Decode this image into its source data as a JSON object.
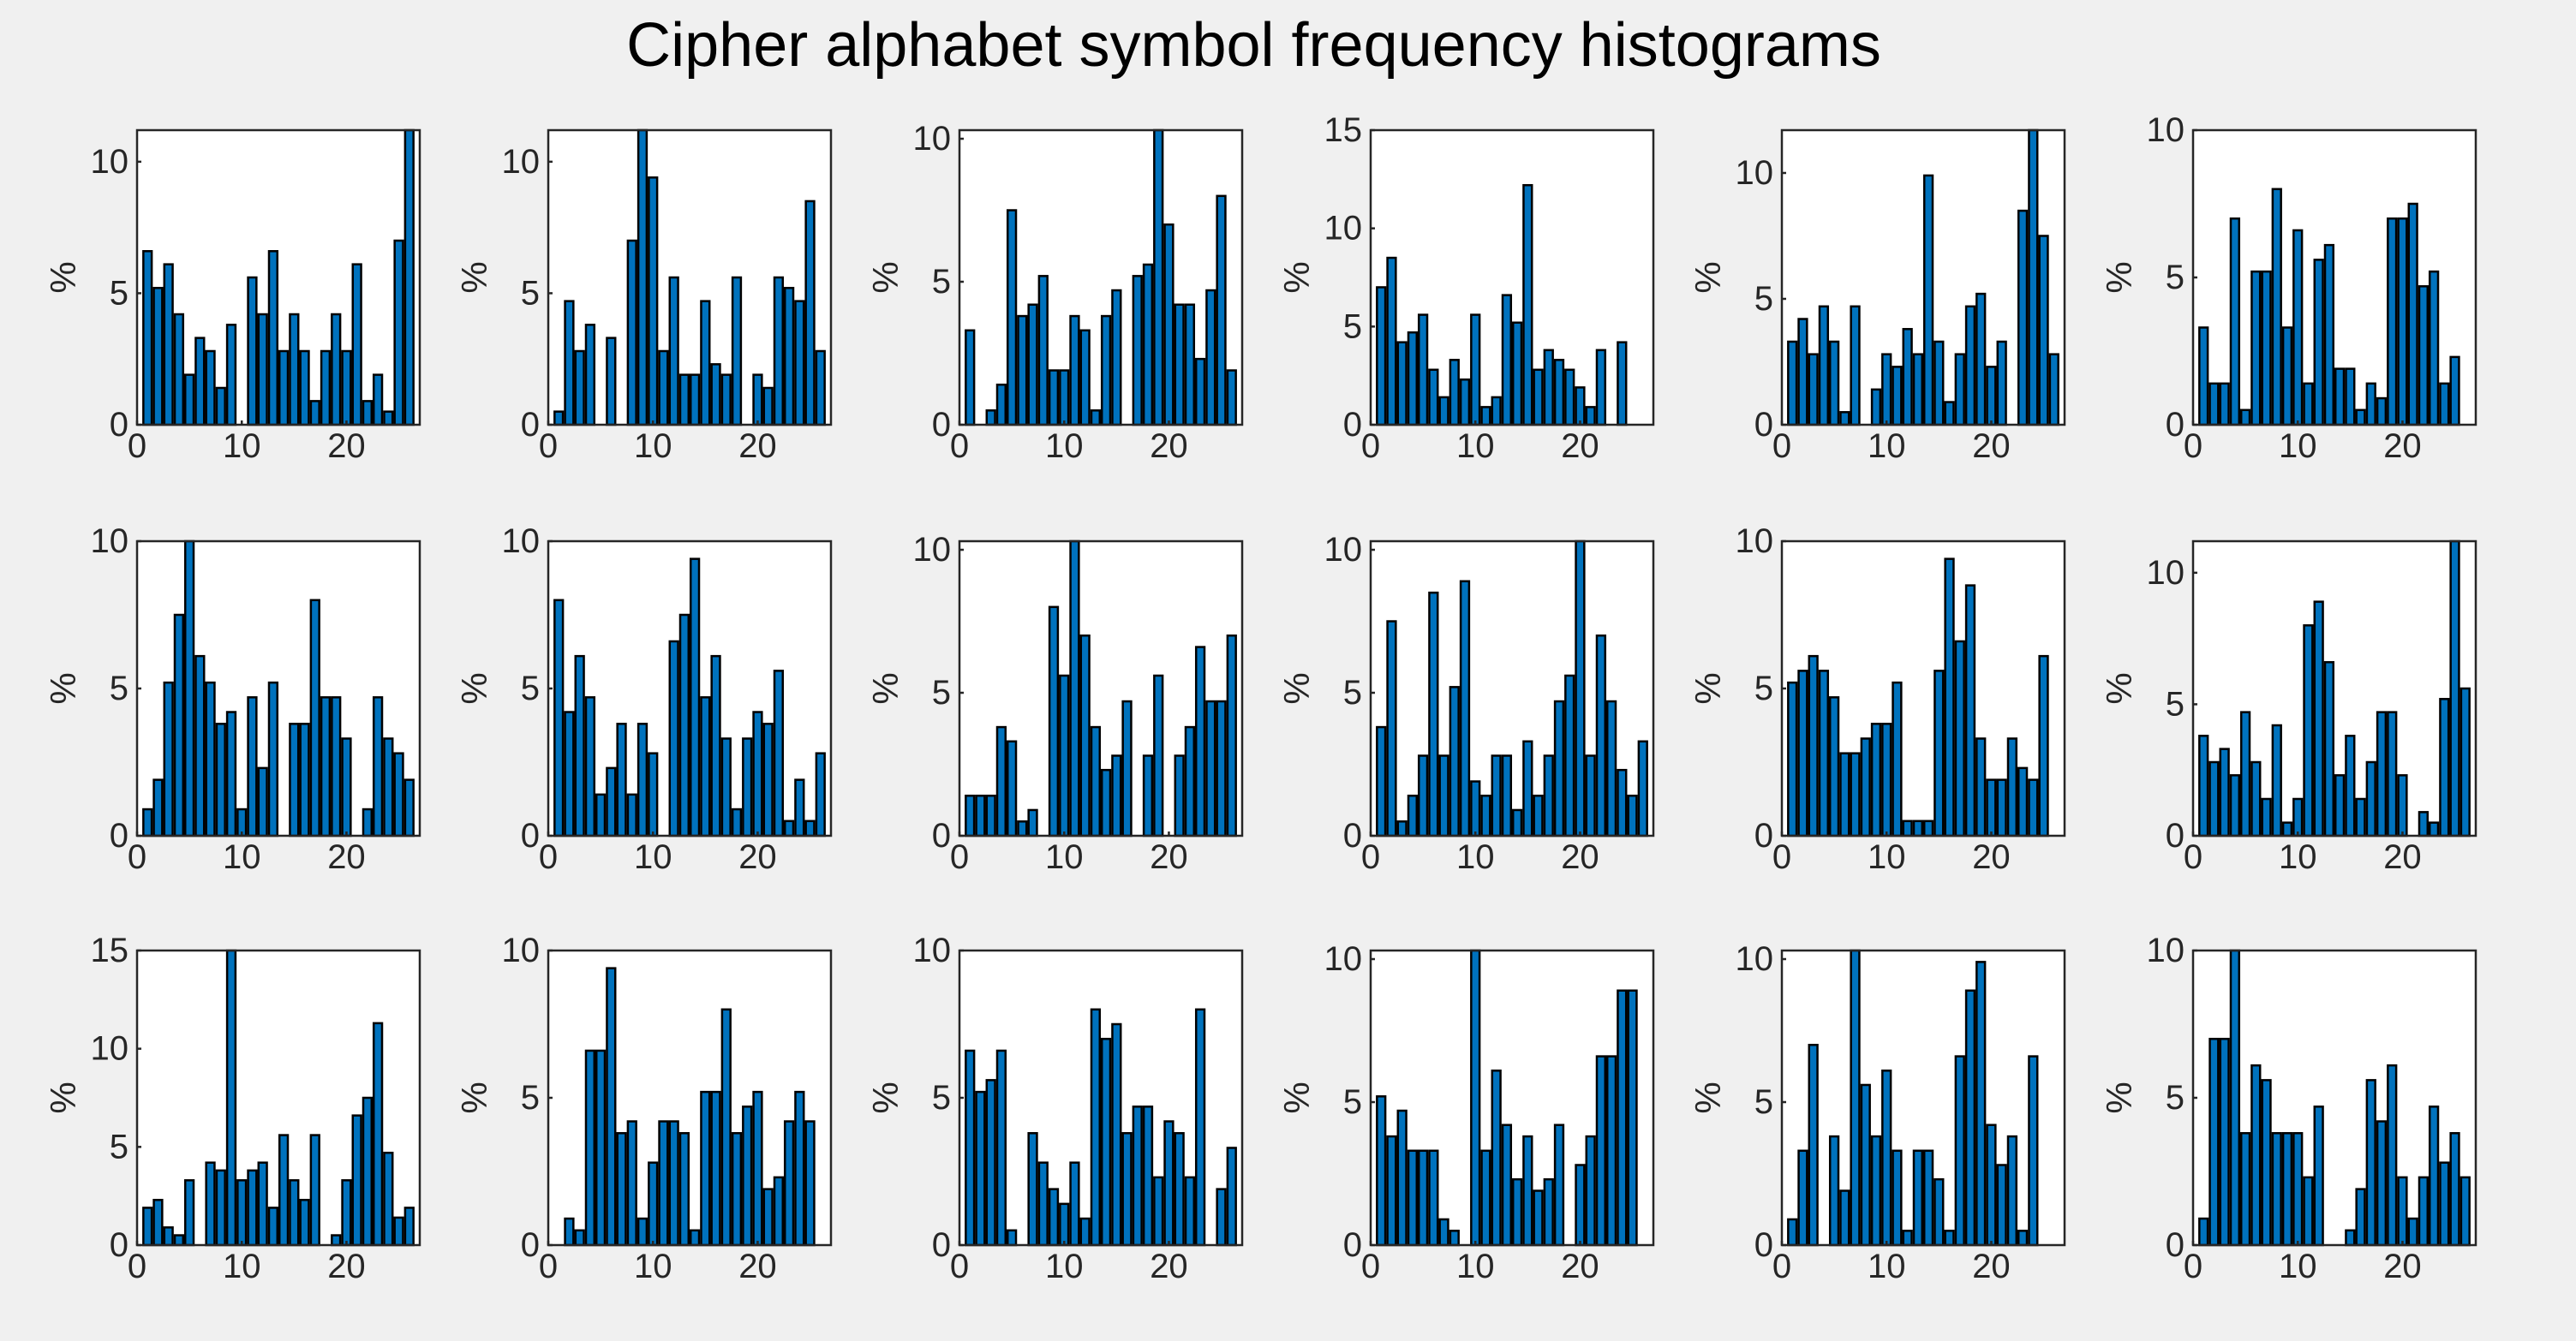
{
  "figure": {
    "title": "Cipher alphabet symbol frequency histograms"
  },
  "chart_data": [
    {
      "type": "bar",
      "xlabel": "",
      "ylabel": "%",
      "ylim": [
        0,
        11.2
      ],
      "yticks": [
        0,
        5,
        10
      ],
      "xticks": [
        0,
        10,
        20
      ],
      "xlim": [
        0,
        27
      ],
      "x": [
        1,
        2,
        3,
        4,
        5,
        6,
        7,
        8,
        9,
        10,
        11,
        12,
        13,
        14,
        15,
        16,
        17,
        18,
        19,
        20,
        21,
        22,
        23,
        24,
        25,
        26
      ],
      "values": [
        6.6,
        5.2,
        6.1,
        4.2,
        1.9,
        3.3,
        2.8,
        1.4,
        3.8,
        0,
        5.6,
        4.2,
        6.6,
        2.8,
        4.2,
        2.8,
        0.9,
        2.8,
        4.2,
        2.8,
        6.1,
        0.9,
        1.9,
        0.5,
        7.0,
        11.2
      ]
    },
    {
      "type": "bar",
      "xlabel": "",
      "ylabel": "%",
      "ylim": [
        0,
        11.2
      ],
      "yticks": [
        0,
        5,
        10
      ],
      "xticks": [
        0,
        10,
        20
      ],
      "xlim": [
        0,
        27
      ],
      "x": [
        1,
        2,
        3,
        4,
        5,
        6,
        7,
        8,
        9,
        10,
        11,
        12,
        13,
        14,
        15,
        16,
        17,
        18,
        19,
        20,
        21,
        22,
        23,
        24,
        25,
        26
      ],
      "values": [
        0.5,
        4.7,
        2.8,
        3.8,
        0,
        3.3,
        0,
        7.0,
        11.2,
        9.4,
        2.8,
        5.6,
        1.9,
        1.9,
        4.7,
        2.3,
        1.9,
        5.6,
        0,
        1.9,
        1.4,
        5.6,
        5.2,
        4.7,
        8.5,
        2.8
      ]
    },
    {
      "type": "bar",
      "xlabel": "",
      "ylabel": "%",
      "ylim": [
        0,
        10.3
      ],
      "yticks": [
        0,
        5,
        10
      ],
      "xticks": [
        0,
        10,
        20
      ],
      "xlim": [
        0,
        27
      ],
      "x": [
        1,
        2,
        3,
        4,
        5,
        6,
        7,
        8,
        9,
        10,
        11,
        12,
        13,
        14,
        15,
        16,
        17,
        18,
        19,
        20,
        21,
        22,
        23,
        24,
        25,
        26
      ],
      "values": [
        3.3,
        0,
        0.5,
        1.4,
        7.5,
        3.8,
        4.2,
        5.2,
        1.9,
        1.9,
        3.8,
        3.3,
        0.5,
        3.8,
        4.7,
        0,
        5.2,
        5.6,
        10.3,
        7.0,
        4.2,
        4.2,
        2.3,
        4.7,
        8.0,
        1.9
      ]
    },
    {
      "type": "bar",
      "xlabel": "",
      "ylabel": "%",
      "ylim": [
        0,
        15
      ],
      "yticks": [
        0,
        5,
        10,
        15
      ],
      "xticks": [
        0,
        10,
        20
      ],
      "xlim": [
        0,
        27
      ],
      "x": [
        1,
        2,
        3,
        4,
        5,
        6,
        7,
        8,
        9,
        10,
        11,
        12,
        13,
        14,
        15,
        16,
        17,
        18,
        19,
        20,
        21,
        22,
        23,
        24,
        25,
        26
      ],
      "values": [
        7.0,
        8.5,
        4.2,
        4.7,
        5.6,
        2.8,
        1.4,
        3.3,
        2.3,
        5.6,
        0.9,
        1.4,
        6.6,
        5.2,
        12.2,
        2.8,
        3.8,
        3.3,
        2.8,
        1.9,
        0.9,
        3.8,
        0,
        4.2,
        0,
        0
      ]
    },
    {
      "type": "bar",
      "xlabel": "",
      "ylabel": "%",
      "ylim": [
        0,
        11.7
      ],
      "yticks": [
        0,
        5,
        10
      ],
      "xticks": [
        0,
        10,
        20
      ],
      "xlim": [
        0,
        27
      ],
      "x": [
        1,
        2,
        3,
        4,
        5,
        6,
        7,
        8,
        9,
        10,
        11,
        12,
        13,
        14,
        15,
        16,
        17,
        18,
        19,
        20,
        21,
        22,
        23,
        24,
        25,
        26
      ],
      "values": [
        3.3,
        4.2,
        2.8,
        4.7,
        3.3,
        0.5,
        4.7,
        0,
        1.4,
        2.8,
        2.3,
        3.8,
        2.8,
        9.9,
        3.3,
        0.9,
        2.8,
        4.7,
        5.2,
        2.3,
        3.3,
        0,
        8.5,
        11.7,
        7.5,
        2.8
      ]
    },
    {
      "type": "bar",
      "xlabel": "",
      "ylabel": "%",
      "ylim": [
        0,
        10
      ],
      "yticks": [
        0,
        5,
        10
      ],
      "xticks": [
        0,
        10,
        20
      ],
      "xlim": [
        0,
        27
      ],
      "x": [
        1,
        2,
        3,
        4,
        5,
        6,
        7,
        8,
        9,
        10,
        11,
        12,
        13,
        14,
        15,
        16,
        17,
        18,
        19,
        20,
        21,
        22,
        23,
        24,
        25,
        26
      ],
      "values": [
        3.3,
        1.4,
        1.4,
        7.0,
        0.5,
        5.2,
        5.2,
        8.0,
        3.3,
        6.6,
        1.4,
        5.6,
        6.1,
        1.9,
        1.9,
        0.5,
        1.4,
        0.9,
        7.0,
        7.0,
        7.5,
        4.7,
        5.2,
        1.4,
        2.3,
        0
      ]
    },
    {
      "type": "bar",
      "xlabel": "",
      "ylabel": "%",
      "ylim": [
        0,
        10
      ],
      "yticks": [
        0,
        5,
        10
      ],
      "xticks": [
        0,
        10,
        20
      ],
      "xlim": [
        0,
        27
      ],
      "x": [
        1,
        2,
        3,
        4,
        5,
        6,
        7,
        8,
        9,
        10,
        11,
        12,
        13,
        14,
        15,
        16,
        17,
        18,
        19,
        20,
        21,
        22,
        23,
        24,
        25,
        26
      ],
      "values": [
        0.9,
        1.9,
        5.2,
        7.5,
        10,
        6.1,
        5.2,
        3.8,
        4.2,
        0.9,
        4.7,
        2.3,
        5.2,
        0,
        3.8,
        3.8,
        8.0,
        4.7,
        4.7,
        3.3,
        0,
        0.9,
        4.7,
        3.3,
        2.8,
        1.9
      ]
    },
    {
      "type": "bar",
      "xlabel": "",
      "ylabel": "%",
      "ylim": [
        0,
        10
      ],
      "yticks": [
        0,
        5,
        10
      ],
      "xticks": [
        0,
        10,
        20
      ],
      "xlim": [
        0,
        27
      ],
      "x": [
        1,
        2,
        3,
        4,
        5,
        6,
        7,
        8,
        9,
        10,
        11,
        12,
        13,
        14,
        15,
        16,
        17,
        18,
        19,
        20,
        21,
        22,
        23,
        24,
        25,
        26
      ],
      "values": [
        8.0,
        4.2,
        6.1,
        4.7,
        1.4,
        2.3,
        3.8,
        1.4,
        3.8,
        2.8,
        0,
        6.6,
        7.5,
        9.4,
        4.7,
        6.1,
        3.3,
        0.9,
        3.3,
        4.2,
        3.8,
        5.6,
        0.5,
        1.9,
        0.5,
        2.8
      ]
    },
    {
      "type": "bar",
      "xlabel": "",
      "ylabel": "%",
      "ylim": [
        0,
        10.3
      ],
      "yticks": [
        0,
        5,
        10
      ],
      "xticks": [
        0,
        10,
        20
      ],
      "xlim": [
        0,
        27
      ],
      "x": [
        1,
        2,
        3,
        4,
        5,
        6,
        7,
        8,
        9,
        10,
        11,
        12,
        13,
        14,
        15,
        16,
        17,
        18,
        19,
        20,
        21,
        22,
        23,
        24,
        25,
        26
      ],
      "values": [
        1.4,
        1.4,
        1.4,
        3.8,
        3.3,
        0.5,
        0.9,
        0,
        8.0,
        5.6,
        10.3,
        7.0,
        3.8,
        2.3,
        2.8,
        4.7,
        0,
        2.8,
        5.6,
        0,
        2.8,
        3.8,
        6.6,
        4.7,
        4.7,
        7.0
      ]
    },
    {
      "type": "bar",
      "xlabel": "",
      "ylabel": "%",
      "ylim": [
        0,
        10.3
      ],
      "yticks": [
        0,
        5,
        10
      ],
      "xticks": [
        0,
        10,
        20
      ],
      "xlim": [
        0,
        27
      ],
      "x": [
        1,
        2,
        3,
        4,
        5,
        6,
        7,
        8,
        9,
        10,
        11,
        12,
        13,
        14,
        15,
        16,
        17,
        18,
        19,
        20,
        21,
        22,
        23,
        24,
        25,
        26
      ],
      "values": [
        3.8,
        7.5,
        0.5,
        1.4,
        2.8,
        8.5,
        2.8,
        5.2,
        8.9,
        1.9,
        1.4,
        2.8,
        2.8,
        0.9,
        3.3,
        1.4,
        2.8,
        4.7,
        5.6,
        10.3,
        2.8,
        7.0,
        4.7,
        2.3,
        1.4,
        3.3
      ]
    },
    {
      "type": "bar",
      "xlabel": "",
      "ylabel": "%",
      "ylim": [
        0,
        10
      ],
      "yticks": [
        0,
        5,
        10
      ],
      "xticks": [
        0,
        10,
        20
      ],
      "xlim": [
        0,
        27
      ],
      "x": [
        1,
        2,
        3,
        4,
        5,
        6,
        7,
        8,
        9,
        10,
        11,
        12,
        13,
        14,
        15,
        16,
        17,
        18,
        19,
        20,
        21,
        22,
        23,
        24,
        25,
        26
      ],
      "values": [
        5.2,
        5.6,
        6.1,
        5.6,
        4.7,
        2.8,
        2.8,
        3.3,
        3.8,
        3.8,
        5.2,
        0.5,
        0.5,
        0.5,
        5.6,
        9.4,
        6.6,
        8.5,
        3.3,
        1.9,
        1.9,
        3.3,
        2.3,
        1.9,
        6.1,
        0
      ]
    },
    {
      "type": "bar",
      "xlabel": "",
      "ylabel": "%",
      "ylim": [
        0,
        11.2
      ],
      "yticks": [
        0,
        5,
        10
      ],
      "xticks": [
        0,
        10,
        20
      ],
      "xlim": [
        0,
        27
      ],
      "x": [
        1,
        2,
        3,
        4,
        5,
        6,
        7,
        8,
        9,
        10,
        11,
        12,
        13,
        14,
        15,
        16,
        17,
        18,
        19,
        20,
        21,
        22,
        23,
        24,
        25,
        26
      ],
      "values": [
        3.8,
        2.8,
        3.3,
        2.3,
        4.7,
        2.8,
        1.4,
        4.2,
        0.5,
        1.4,
        8.0,
        8.9,
        6.6,
        2.3,
        3.8,
        1.4,
        2.8,
        4.7,
        4.7,
        2.3,
        0,
        0.9,
        0.5,
        5.2,
        11.2,
        5.6
      ]
    },
    {
      "type": "bar",
      "xlabel": "",
      "ylabel": "%",
      "ylim": [
        0,
        15
      ],
      "yticks": [
        0,
        5,
        10,
        15
      ],
      "xticks": [
        0,
        10,
        20
      ],
      "xlim": [
        0,
        27
      ],
      "x": [
        1,
        2,
        3,
        4,
        5,
        6,
        7,
        8,
        9,
        10,
        11,
        12,
        13,
        14,
        15,
        16,
        17,
        18,
        19,
        20,
        21,
        22,
        23,
        24,
        25,
        26
      ],
      "values": [
        1.9,
        2.3,
        0.9,
        0.5,
        3.3,
        0,
        4.2,
        3.8,
        15.0,
        3.3,
        3.8,
        4.2,
        1.9,
        5.6,
        3.3,
        2.3,
        5.6,
        0,
        0.5,
        3.3,
        6.6,
        7.5,
        11.3,
        4.7,
        1.4,
        1.9
      ]
    },
    {
      "type": "bar",
      "xlabel": "",
      "ylabel": "%",
      "ylim": [
        0,
        10
      ],
      "yticks": [
        0,
        5,
        10
      ],
      "xticks": [
        0,
        10,
        20
      ],
      "xlim": [
        0,
        27
      ],
      "x": [
        1,
        2,
        3,
        4,
        5,
        6,
        7,
        8,
        9,
        10,
        11,
        12,
        13,
        14,
        15,
        16,
        17,
        18,
        19,
        20,
        21,
        22,
        23,
        24,
        25,
        26
      ],
      "values": [
        0,
        0.9,
        0.5,
        6.6,
        6.6,
        9.4,
        3.8,
        4.2,
        0.9,
        2.8,
        4.2,
        4.2,
        3.8,
        0.5,
        5.2,
        5.2,
        8.0,
        3.8,
        4.7,
        5.2,
        1.9,
        2.3,
        4.2,
        5.2,
        4.2,
        0
      ]
    },
    {
      "type": "bar",
      "xlabel": "",
      "ylabel": "%",
      "ylim": [
        0,
        10
      ],
      "yticks": [
        0,
        5,
        10
      ],
      "xticks": [
        0,
        10,
        20
      ],
      "xlim": [
        0,
        27
      ],
      "x": [
        1,
        2,
        3,
        4,
        5,
        6,
        7,
        8,
        9,
        10,
        11,
        12,
        13,
        14,
        15,
        16,
        17,
        18,
        19,
        20,
        21,
        22,
        23,
        24,
        25,
        26
      ],
      "values": [
        6.6,
        5.2,
        5.6,
        6.6,
        0.5,
        0,
        3.8,
        2.8,
        1.9,
        1.4,
        2.8,
        0.9,
        8.0,
        7.0,
        7.5,
        3.8,
        4.7,
        4.7,
        2.3,
        4.2,
        3.8,
        2.3,
        8.0,
        0,
        1.9,
        3.3
      ]
    },
    {
      "type": "bar",
      "xlabel": "",
      "ylabel": "%",
      "ylim": [
        0,
        10.3
      ],
      "yticks": [
        0,
        5,
        10
      ],
      "xticks": [
        0,
        10,
        20
      ],
      "xlim": [
        0,
        27
      ],
      "x": [
        1,
        2,
        3,
        4,
        5,
        6,
        7,
        8,
        9,
        10,
        11,
        12,
        13,
        14,
        15,
        16,
        17,
        18,
        19,
        20,
        21,
        22,
        23,
        24,
        25,
        26
      ],
      "values": [
        5.2,
        3.8,
        4.7,
        3.3,
        3.3,
        3.3,
        0.9,
        0.5,
        0,
        10.3,
        3.3,
        6.1,
        4.2,
        2.3,
        3.8,
        1.9,
        2.3,
        4.2,
        0,
        2.8,
        3.8,
        6.6,
        6.6,
        8.9,
        8.9,
        0
      ]
    },
    {
      "type": "bar",
      "xlabel": "",
      "ylabel": "%",
      "ylim": [
        0,
        10.3
      ],
      "yticks": [
        0,
        5,
        10
      ],
      "xticks": [
        0,
        10,
        20
      ],
      "xlim": [
        0,
        27
      ],
      "x": [
        1,
        2,
        3,
        4,
        5,
        6,
        7,
        8,
        9,
        10,
        11,
        12,
        13,
        14,
        15,
        16,
        17,
        18,
        19,
        20,
        21,
        22,
        23,
        24,
        25,
        26
      ],
      "values": [
        0.9,
        3.3,
        7.0,
        0,
        3.8,
        1.9,
        10.3,
        5.6,
        3.8,
        6.1,
        3.3,
        0.5,
        3.3,
        3.3,
        2.3,
        0.5,
        6.6,
        8.9,
        9.9,
        4.2,
        2.8,
        3.8,
        0.5,
        6.6,
        0,
        0
      ]
    },
    {
      "type": "bar",
      "xlabel": "",
      "ylabel": "%",
      "ylim": [
        0,
        10
      ],
      "yticks": [
        0,
        5,
        10
      ],
      "xticks": [
        0,
        10,
        20
      ],
      "xlim": [
        0,
        27
      ],
      "x": [
        1,
        2,
        3,
        4,
        5,
        6,
        7,
        8,
        9,
        10,
        11,
        12,
        13,
        14,
        15,
        16,
        17,
        18,
        19,
        20,
        21,
        22,
        23,
        24,
        25,
        26
      ],
      "values": [
        0.9,
        7.0,
        7.0,
        10,
        3.8,
        6.1,
        5.6,
        3.8,
        3.8,
        3.8,
        2.3,
        4.7,
        0,
        0,
        0.5,
        1.9,
        5.6,
        4.2,
        6.1,
        2.3,
        0.9,
        2.3,
        4.7,
        2.8,
        3.8,
        2.3
      ]
    }
  ],
  "colors": {
    "bar_fill": "#0072bd",
    "bar_edge": "#000000",
    "axes_bg": "#ffffff",
    "figure_bg": "#f0f0f0"
  }
}
